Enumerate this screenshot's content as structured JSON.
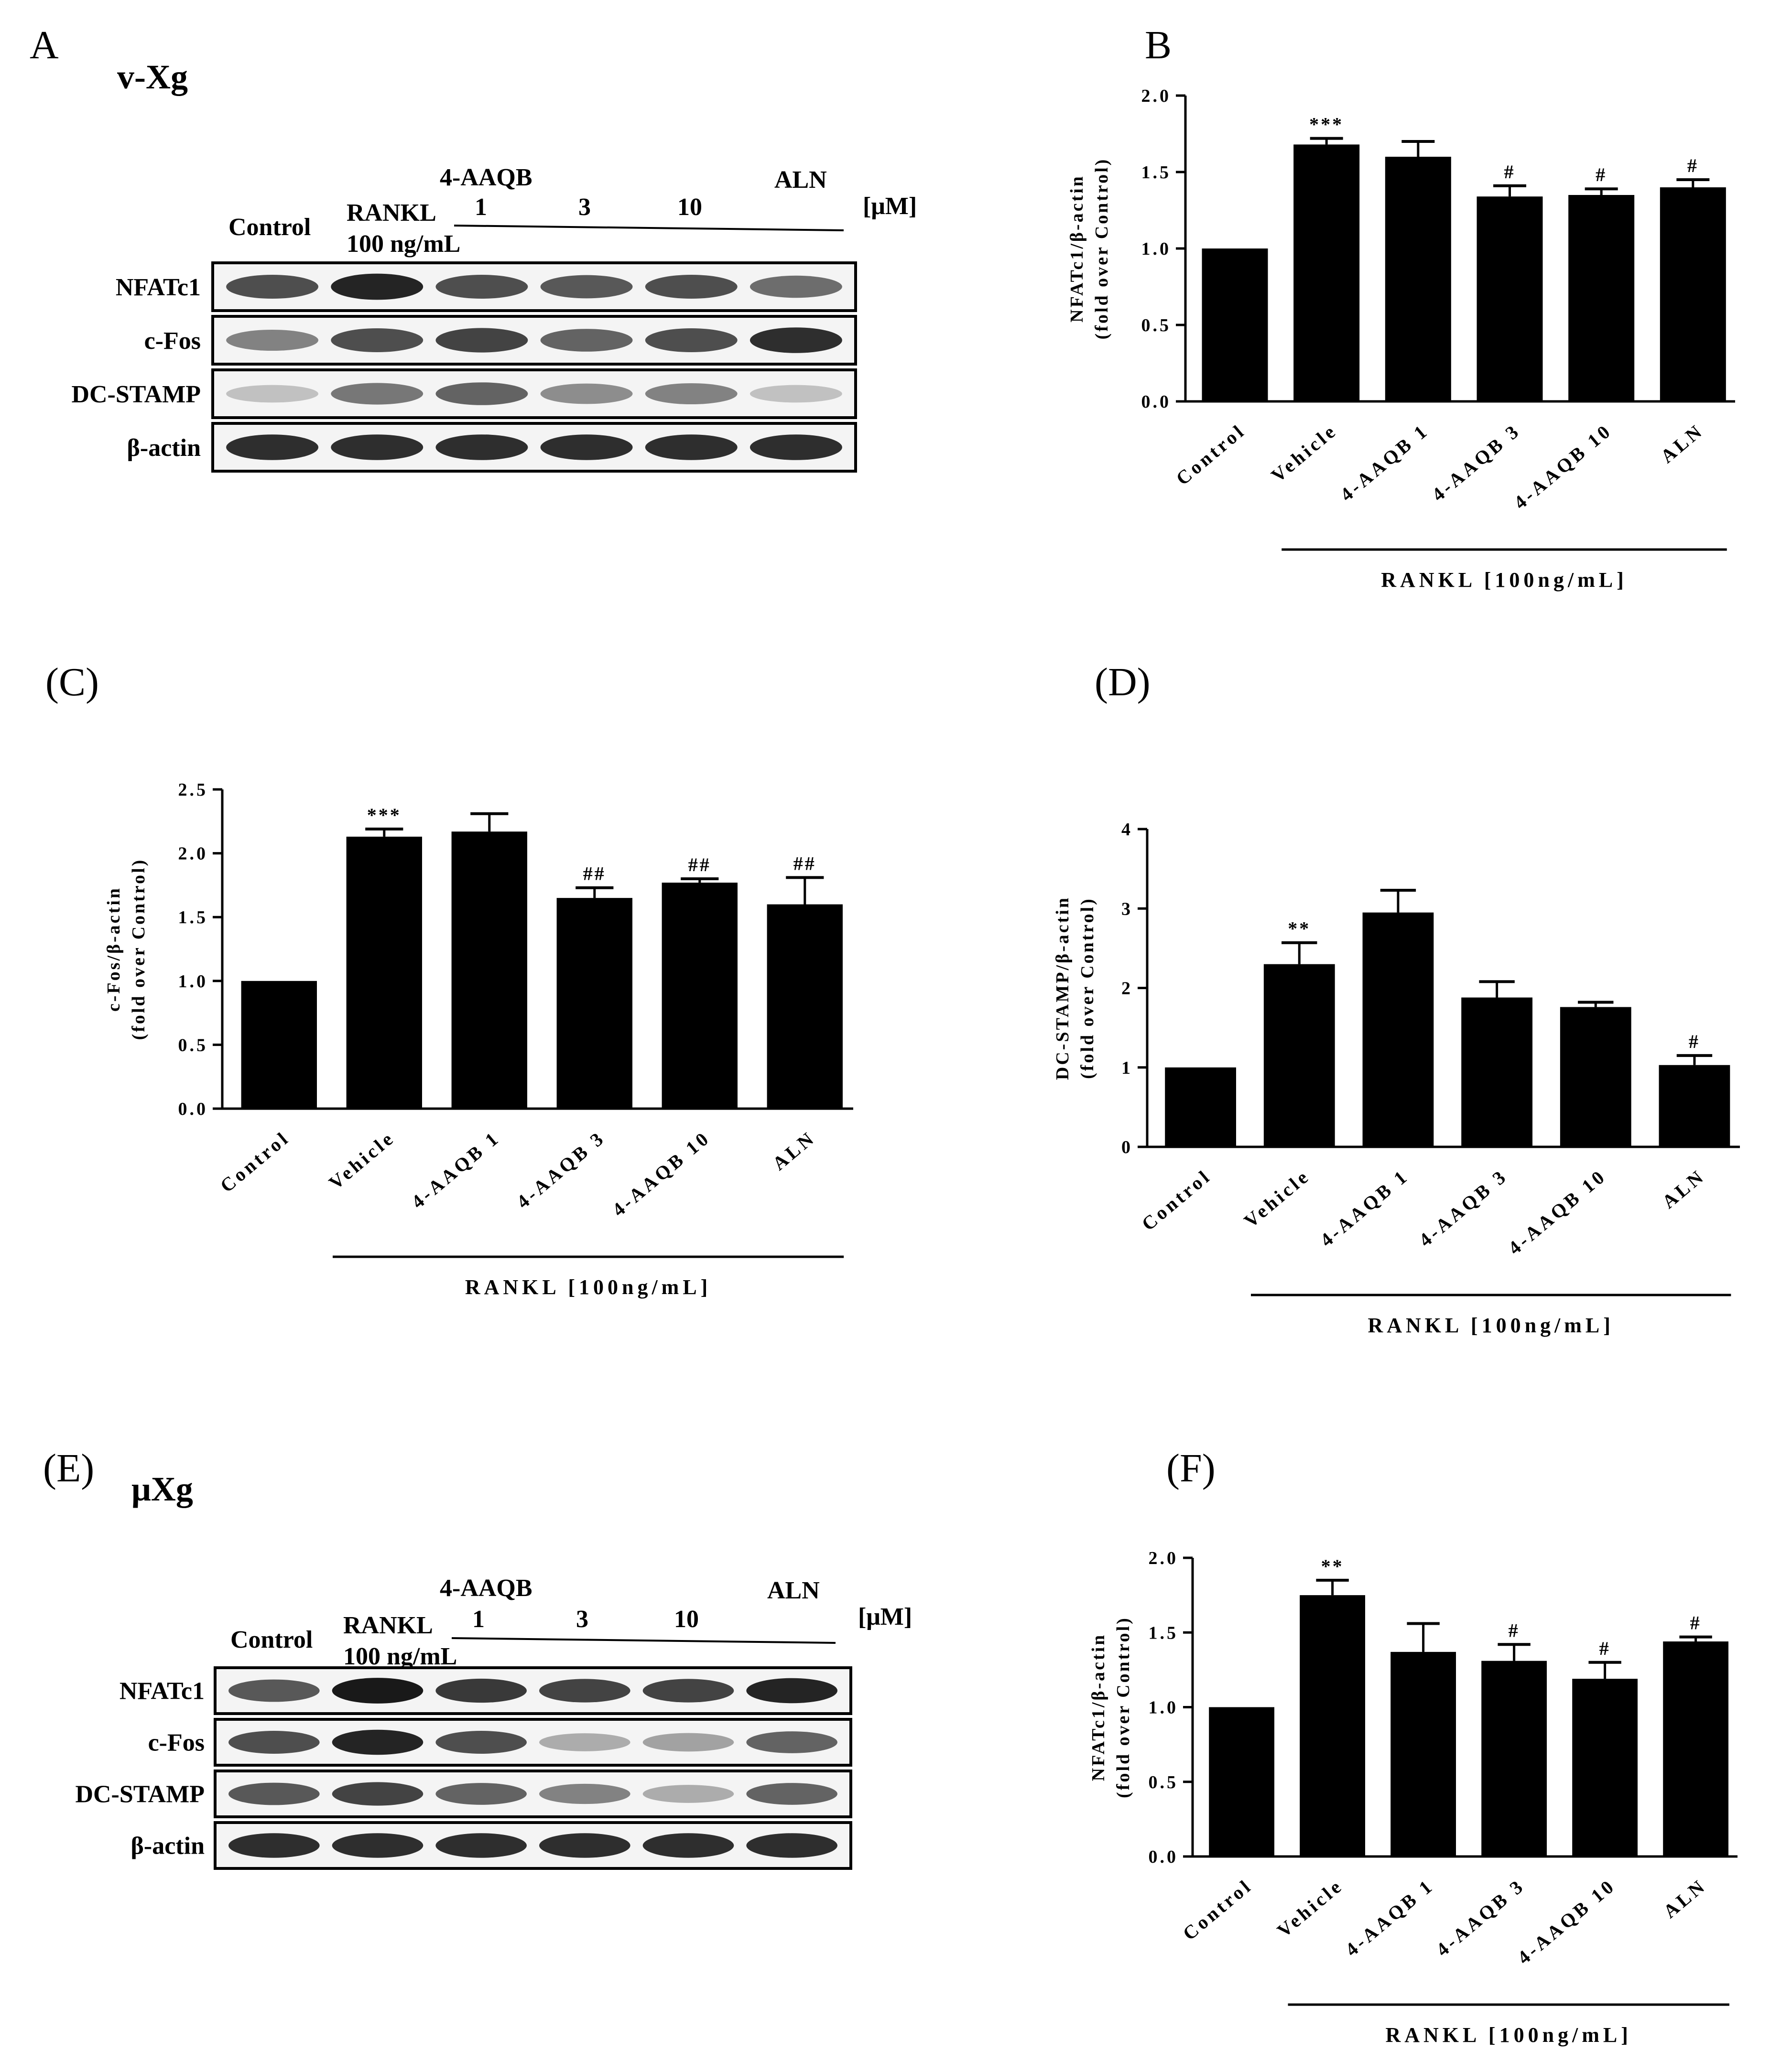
{
  "panels": {
    "A": "A",
    "B": "B",
    "C": "(C)",
    "D": "(D)",
    "E": "(E)",
    "F": "(F)"
  },
  "blots": [
    {
      "id": "A",
      "title": "v-Xg",
      "control": "Control",
      "rankl_line1": "RANKL",
      "rankl_line2": "100 ng/mL",
      "group_label": "4-AAQB",
      "doses": [
        "1",
        "3",
        "10"
      ],
      "aln": "ALN",
      "unit": "[μM]",
      "rows": [
        "NFATc1",
        "c-Fos",
        "DC-STAMP",
        "β-actin"
      ],
      "intensity": [
        [
          0.75,
          0.95,
          0.75,
          0.7,
          0.75,
          0.6
        ],
        [
          0.5,
          0.75,
          0.8,
          0.65,
          0.75,
          0.9
        ],
        [
          0.2,
          0.55,
          0.65,
          0.45,
          0.5,
          0.2
        ],
        [
          0.9,
          0.9,
          0.9,
          0.9,
          0.9,
          0.9
        ]
      ]
    },
    {
      "id": "E",
      "title": "μXg",
      "control": "Control",
      "rankl_line1": "RANKL",
      "rankl_line2": "100 ng/mL",
      "group_label": "4-AAQB",
      "doses": [
        "1",
        "3",
        "10"
      ],
      "aln": "ALN",
      "unit": "[μM]",
      "rows": [
        "NFATc1",
        "c-Fos",
        "DC-STAMP",
        "β-actin"
      ],
      "intensity": [
        [
          0.7,
          1.0,
          0.85,
          0.8,
          0.8,
          0.95
        ],
        [
          0.75,
          0.95,
          0.75,
          0.3,
          0.35,
          0.65
        ],
        [
          0.7,
          0.8,
          0.65,
          0.5,
          0.3,
          0.65
        ],
        [
          0.9,
          0.9,
          0.9,
          0.9,
          0.9,
          0.9
        ]
      ]
    }
  ],
  "chart_data": [
    {
      "id": "B",
      "type": "bar",
      "categories": [
        "Control",
        "Vehicle",
        "4-AAQB 1",
        "4-AAQB 3",
        "4-AAQB 10",
        "ALN"
      ],
      "values": [
        1.0,
        1.68,
        1.6,
        1.34,
        1.35,
        1.4
      ],
      "errors": [
        0,
        0.04,
        0.1,
        0.07,
        0.04,
        0.05
      ],
      "significance": [
        "",
        "***",
        "",
        "#",
        "#",
        "#"
      ],
      "ylabel_line1": "NFATc1/β-actin",
      "ylabel_line2": "(fold over Control)",
      "ylim": [
        0,
        2.0
      ],
      "yticks": [
        "0.0",
        "0.5",
        "1.0",
        "1.5",
        "2.0"
      ],
      "group_label": "RANKL [100ng/mL]",
      "grid": false
    },
    {
      "id": "C",
      "type": "bar",
      "categories": [
        "Control",
        "Vehicle",
        "4-AAQB 1",
        "4-AAQB 3",
        "4-AAQB 10",
        "ALN"
      ],
      "values": [
        1.0,
        2.13,
        2.17,
        1.65,
        1.77,
        1.6
      ],
      "errors": [
        0,
        0.06,
        0.14,
        0.08,
        0.03,
        0.21
      ],
      "significance": [
        "",
        "***",
        "",
        "##",
        "##",
        "##"
      ],
      "ylabel_line1": "c-Fos/β-actin",
      "ylabel_line2": "(fold over Control)",
      "ylim": [
        0,
        2.5
      ],
      "yticks": [
        "0.0",
        "0.5",
        "1.0",
        "1.5",
        "2.0",
        "2.5"
      ],
      "group_label": "RANKL [100ng/mL]",
      "grid": false
    },
    {
      "id": "D",
      "type": "bar",
      "categories": [
        "Control",
        "Vehicle",
        "4-AAQB 1",
        "4-AAQB 3",
        "4-AAQB 10",
        "ALN"
      ],
      "values": [
        1.0,
        2.3,
        2.95,
        1.88,
        1.76,
        1.03
      ],
      "errors": [
        0,
        0.27,
        0.28,
        0.2,
        0.06,
        0.12
      ],
      "significance": [
        "",
        "**",
        "",
        "",
        "",
        "#"
      ],
      "ylabel_line1": "DC-STAMP/β-actin",
      "ylabel_line2": "(fold over Control)",
      "ylim": [
        0,
        4
      ],
      "yticks": [
        "0",
        "1",
        "2",
        "3",
        "4"
      ],
      "group_label": "RANKL [100ng/mL]",
      "grid": false
    },
    {
      "id": "F",
      "type": "bar",
      "categories": [
        "Control",
        "Vehicle",
        "4-AAQB 1",
        "4-AAQB 3",
        "4-AAQB 10",
        "ALN"
      ],
      "values": [
        1.0,
        1.75,
        1.37,
        1.31,
        1.19,
        1.44
      ],
      "errors": [
        0,
        0.1,
        0.19,
        0.11,
        0.11,
        0.03
      ],
      "significance": [
        "",
        "**",
        "",
        "#",
        "#",
        "#"
      ],
      "ylabel_line1": "NFATc1/β-actin",
      "ylabel_line2": "(fold over Control)",
      "ylim": [
        0,
        2.0
      ],
      "yticks": [
        "0.0",
        "0.5",
        "1.0",
        "1.5",
        "2.0"
      ],
      "group_label": "RANKL [100ng/mL]",
      "grid": false
    }
  ]
}
